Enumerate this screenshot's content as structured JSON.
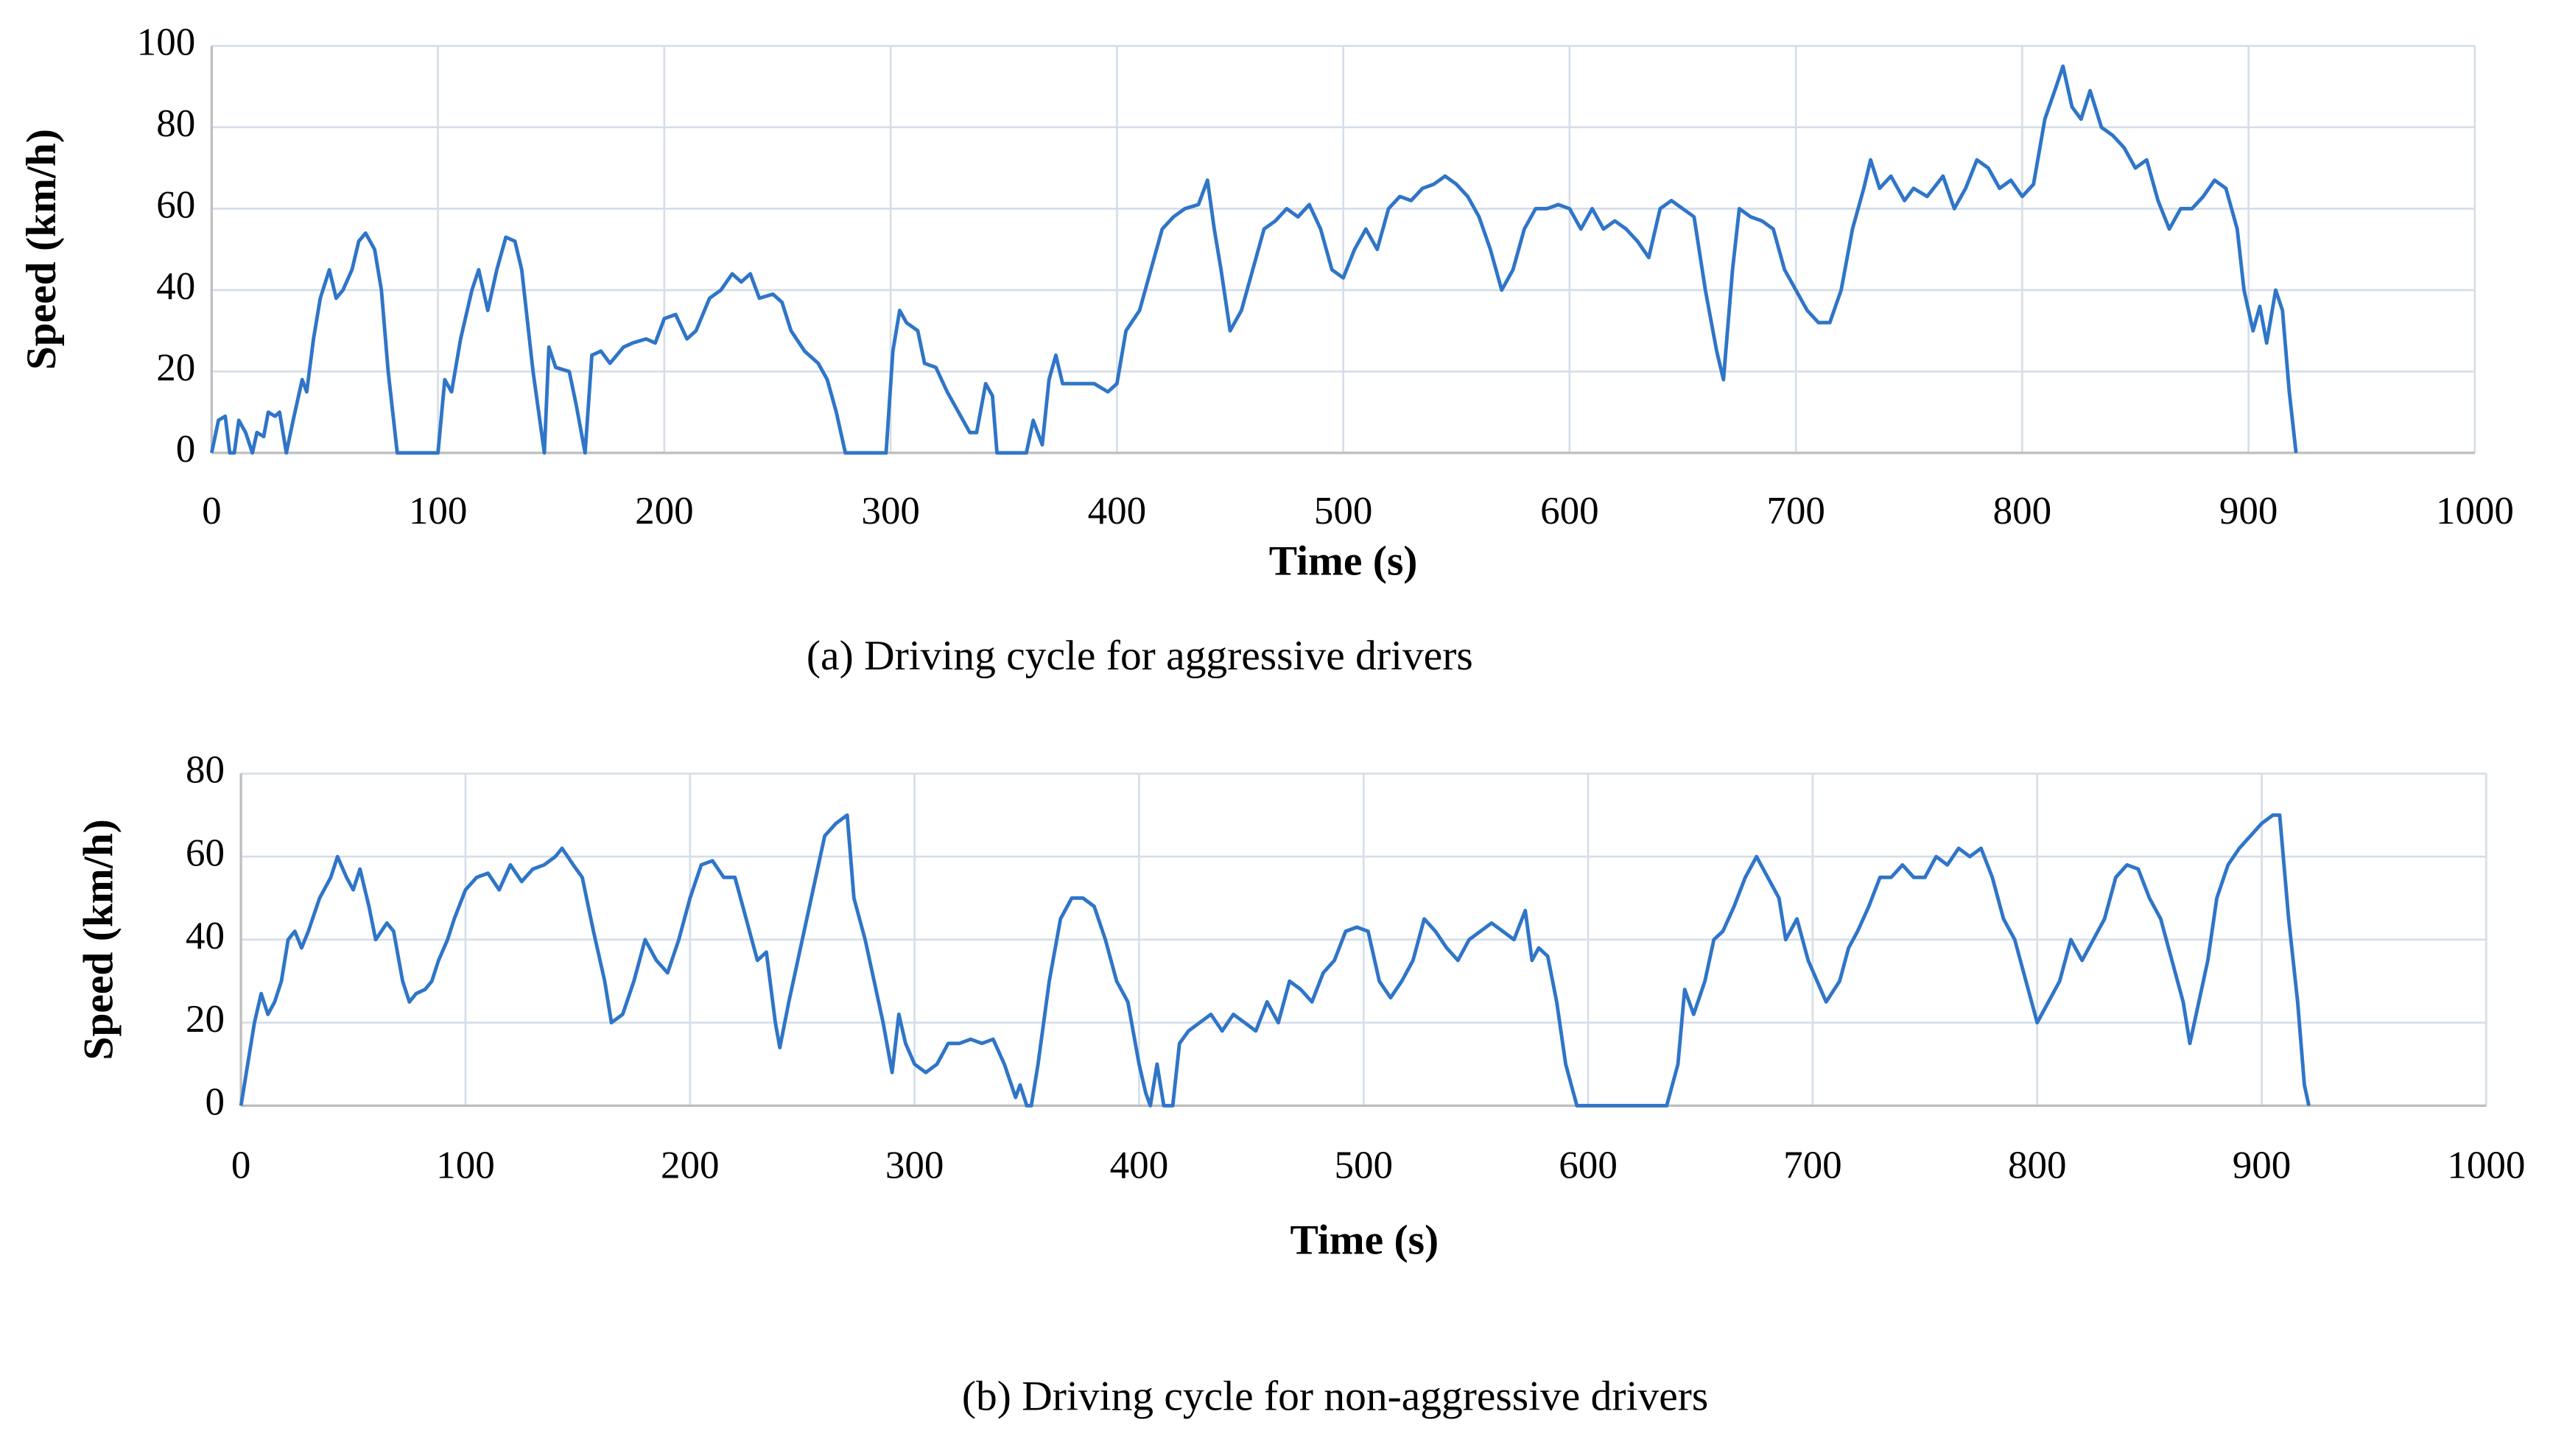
{
  "chart_data": [
    {
      "type": "line",
      "xlabel": "Time (s)",
      "ylabel": "Speed (km/h)",
      "caption": "(a) Driving cycle for aggressive drivers",
      "color": "#2f75c8",
      "grid": true,
      "xlim": [
        0,
        1000
      ],
      "xticks": [
        0,
        100,
        200,
        300,
        400,
        500,
        600,
        700,
        800,
        900,
        1000
      ],
      "ylim": [
        0,
        100
      ],
      "yticks": [
        0,
        20,
        40,
        60,
        80,
        100
      ],
      "x": [
        0,
        3,
        6,
        8,
        10,
        12,
        15,
        18,
        20,
        23,
        25,
        28,
        30,
        33,
        36,
        40,
        42,
        45,
        48,
        52,
        55,
        58,
        62,
        65,
        68,
        72,
        75,
        78,
        82,
        100,
        103,
        106,
        110,
        115,
        118,
        122,
        126,
        130,
        134,
        137,
        142,
        147,
        149,
        152,
        158,
        161,
        165,
        168,
        172,
        176,
        182,
        186,
        192,
        196,
        200,
        205,
        210,
        214,
        220,
        225,
        230,
        234,
        238,
        242,
        248,
        252,
        256,
        262,
        268,
        272,
        276,
        280,
        298,
        301,
        304,
        307,
        312,
        315,
        320,
        325,
        330,
        335,
        338,
        342,
        345,
        347,
        360,
        363,
        367,
        370,
        373,
        376,
        382,
        390,
        396,
        400,
        404,
        410,
        415,
        420,
        425,
        430,
        436,
        440,
        443,
        446,
        450,
        455,
        460,
        465,
        470,
        475,
        480,
        485,
        490,
        495,
        500,
        505,
        510,
        515,
        520,
        525,
        530,
        535,
        540,
        545,
        550,
        555,
        560,
        565,
        570,
        575,
        580,
        585,
        590,
        595,
        600,
        605,
        610,
        615,
        620,
        625,
        630,
        635,
        640,
        645,
        650,
        655,
        660,
        665,
        668,
        672,
        675,
        680,
        685,
        690,
        695,
        700,
        705,
        710,
        715,
        720,
        725,
        730,
        733,
        737,
        742,
        748,
        752,
        758,
        765,
        770,
        775,
        780,
        785,
        790,
        795,
        800,
        805,
        810,
        815,
        818,
        822,
        826,
        830,
        835,
        840,
        845,
        850,
        855,
        860,
        865,
        870,
        875,
        880,
        885,
        890,
        895,
        898,
        902,
        905,
        908,
        912,
        915,
        918,
        921
      ],
      "values": [
        0,
        8,
        9,
        0,
        0,
        8,
        5,
        0,
        5,
        4,
        10,
        9,
        10,
        0,
        8,
        18,
        15,
        28,
        38,
        45,
        38,
        40,
        45,
        52,
        54,
        50,
        40,
        20,
        0,
        0,
        18,
        15,
        28,
        40,
        45,
        35,
        45,
        53,
        52,
        45,
        20,
        0,
        26,
        21,
        20,
        12,
        0,
        24,
        25,
        22,
        26,
        27,
        28,
        27,
        33,
        34,
        28,
        30,
        38,
        40,
        44,
        42,
        44,
        38,
        39,
        37,
        30,
        25,
        22,
        18,
        10,
        0,
        0,
        25,
        35,
        32,
        30,
        22,
        21,
        15,
        10,
        5,
        5,
        17,
        14,
        0,
        0,
        8,
        2,
        18,
        24,
        17,
        17,
        17,
        15,
        17,
        30,
        35,
        45,
        55,
        58,
        60,
        61,
        67,
        55,
        45,
        30,
        35,
        45,
        55,
        57,
        60,
        58,
        61,
        55,
        45,
        43,
        50,
        55,
        50,
        60,
        63,
        62,
        65,
        66,
        68,
        66,
        63,
        58,
        50,
        40,
        45,
        55,
        60,
        60,
        61,
        60,
        55,
        60,
        55,
        57,
        55,
        52,
        48,
        60,
        62,
        60,
        58,
        40,
        25,
        18,
        45,
        60,
        58,
        57,
        55,
        45,
        40,
        35,
        32,
        32,
        40,
        55,
        65,
        72,
        65,
        68,
        62,
        65,
        63,
        68,
        60,
        65,
        72,
        70,
        65,
        67,
        63,
        66,
        82,
        90,
        95,
        85,
        82,
        89,
        80,
        78,
        75,
        70,
        72,
        62,
        55,
        60,
        60,
        63,
        67,
        65,
        55,
        40,
        30,
        36,
        27,
        40,
        35,
        15,
        0
      ]
    },
    {
      "type": "line",
      "xlabel": "Time (s)",
      "ylabel": "Speed (km/h)",
      "caption": "(b) Driving cycle for non-aggressive drivers",
      "color": "#2f75c8",
      "grid": true,
      "xlim": [
        0,
        1000
      ],
      "xticks": [
        0,
        100,
        200,
        300,
        400,
        500,
        600,
        700,
        800,
        900,
        1000
      ],
      "ylim": [
        0,
        80
      ],
      "yticks": [
        0,
        20,
        40,
        60,
        80
      ],
      "x": [
        0,
        3,
        6,
        9,
        12,
        15,
        18,
        21,
        24,
        27,
        30,
        35,
        40,
        43,
        47,
        50,
        53,
        57,
        60,
        65,
        68,
        72,
        75,
        78,
        82,
        85,
        88,
        92,
        95,
        100,
        105,
        110,
        115,
        120,
        125,
        130,
        135,
        140,
        143,
        148,
        152,
        157,
        162,
        165,
        170,
        175,
        180,
        185,
        190,
        195,
        200,
        205,
        210,
        215,
        220,
        225,
        230,
        234,
        238,
        240,
        244,
        248,
        252,
        256,
        260,
        265,
        270,
        273,
        278,
        282,
        286,
        290,
        293,
        296,
        300,
        305,
        310,
        315,
        320,
        325,
        330,
        335,
        340,
        345,
        347,
        350,
        352,
        355,
        360,
        365,
        370,
        375,
        380,
        385,
        390,
        395,
        400,
        403,
        405,
        408,
        411,
        415,
        418,
        422,
        427,
        432,
        437,
        442,
        447,
        452,
        457,
        462,
        467,
        472,
        477,
        482,
        487,
        492,
        497,
        502,
        507,
        512,
        517,
        522,
        527,
        532,
        537,
        542,
        547,
        552,
        557,
        562,
        567,
        572,
        575,
        578,
        582,
        586,
        590,
        595,
        635,
        640,
        643,
        647,
        652,
        656,
        660,
        665,
        670,
        675,
        680,
        685,
        688,
        693,
        698,
        702,
        706,
        712,
        716,
        720,
        725,
        730,
        735,
        740,
        745,
        750,
        755,
        760,
        765,
        770,
        775,
        780,
        785,
        790,
        795,
        800,
        805,
        810,
        815,
        820,
        825,
        830,
        835,
        840,
        845,
        850,
        855,
        860,
        865,
        868,
        872,
        876,
        880,
        885,
        890,
        895,
        900,
        905,
        908,
        912,
        916,
        919,
        921
      ],
      "values": [
        0,
        10,
        20,
        27,
        22,
        25,
        30,
        40,
        42,
        38,
        42,
        50,
        55,
        60,
        55,
        52,
        57,
        48,
        40,
        44,
        42,
        30,
        25,
        27,
        28,
        30,
        35,
        40,
        45,
        52,
        55,
        56,
        52,
        58,
        54,
        57,
        58,
        60,
        62,
        58,
        55,
        42,
        30,
        20,
        22,
        30,
        40,
        35,
        32,
        40,
        50,
        58,
        59,
        55,
        55,
        45,
        35,
        37,
        20,
        14,
        25,
        35,
        45,
        55,
        65,
        68,
        70,
        50,
        40,
        30,
        20,
        8,
        22,
        15,
        10,
        8,
        10,
        15,
        15,
        16,
        15,
        16,
        10,
        2,
        5,
        0,
        0,
        10,
        30,
        45,
        50,
        50,
        48,
        40,
        30,
        25,
        10,
        3,
        0,
        10,
        0,
        0,
        15,
        18,
        20,
        22,
        18,
        22,
        20,
        18,
        25,
        20,
        30,
        28,
        25,
        32,
        35,
        42,
        43,
        42,
        30,
        26,
        30,
        35,
        45,
        42,
        38,
        35,
        40,
        42,
        44,
        42,
        40,
        47,
        35,
        38,
        36,
        25,
        10,
        0,
        0,
        10,
        28,
        22,
        30,
        40,
        42,
        48,
        55,
        60,
        55,
        50,
        40,
        45,
        35,
        30,
        25,
        30,
        38,
        42,
        48,
        55,
        55,
        58,
        55,
        55,
        60,
        58,
        62,
        60,
        62,
        55,
        45,
        40,
        30,
        20,
        25,
        30,
        40,
        35,
        40,
        45,
        55,
        58,
        57,
        50,
        45,
        35,
        25,
        15,
        25,
        35,
        50,
        58,
        62,
        65,
        68,
        70,
        70,
        45,
        25,
        5,
        0
      ]
    }
  ]
}
